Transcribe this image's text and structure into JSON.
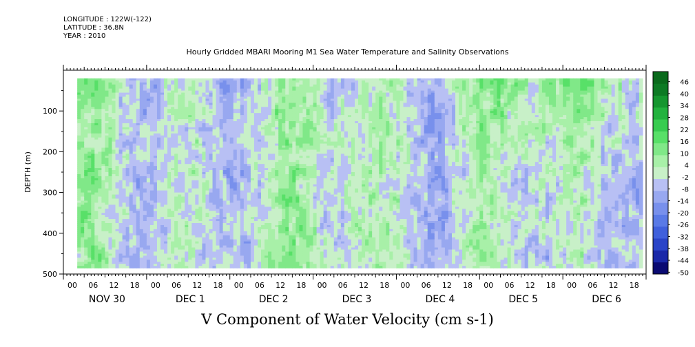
{
  "metadata": {
    "longitude": "LONGITUDE : 122W(-122)",
    "latitude": "LATITUDE : 36.8N",
    "year": "YEAR : 2010"
  },
  "chart_data": {
    "type": "heatmap",
    "title": "Hourly Gridded MBARI Mooring M1 Sea Water Temperature and Salinity Observations",
    "colorbar_title": "V Component of Water Velocity (cm s-1)",
    "ylabel": "DEPTH (m)",
    "xlabel": "",
    "y_axis": {
      "range": [
        500,
        0
      ],
      "inverted": true,
      "ticks": [
        100,
        200,
        300,
        400,
        500
      ],
      "tick_labels": [
        "100",
        "200",
        "300",
        "400",
        "500"
      ]
    },
    "x_axis": {
      "range_hours": [
        0,
        168
      ],
      "hour_ticks": [
        "00",
        "06",
        "12",
        "18",
        "00",
        "06",
        "12",
        "18",
        "00",
        "06",
        "12",
        "18",
        "00",
        "06",
        "12",
        "18",
        "00",
        "06",
        "12",
        "18",
        "00",
        "06",
        "12",
        "18",
        "00",
        "06",
        "12",
        "18"
      ],
      "day_labels": [
        "NOV 30",
        "DEC  1",
        "DEC  2",
        "DEC  3",
        "DEC  4",
        "DEC  5",
        "DEC  6"
      ]
    },
    "data_extent": {
      "depth_top_m": 20,
      "depth_bottom_m": 485,
      "start": "NOV 30 04",
      "end": "DEC 6 23"
    },
    "colorbar": {
      "levels": [
        -50,
        -44,
        -38,
        -32,
        -26,
        -20,
        -14,
        -8,
        -2,
        4,
        10,
        16,
        22,
        28,
        34,
        40,
        46
      ],
      "labels": [
        "46",
        "40",
        "34",
        "28",
        "22",
        "16",
        "10",
        "4",
        "-2",
        "-8",
        "-14",
        "-20",
        "-26",
        "-32",
        "-38",
        "-44",
        "-50"
      ],
      "colors_low_to_high": [
        "#0a0a72",
        "#1a28a8",
        "#2a44c8",
        "#4060dc",
        "#5a7ae6",
        "#7890ec",
        "#98a8f0",
        "#b8c0f4",
        "#c8f0c8",
        "#a8f0a8",
        "#80e888",
        "#58e068",
        "#38cc50",
        "#22b23e",
        "#15962f",
        "#0d7a24",
        "#0a6a1c"
      ]
    },
    "grid": false
  }
}
